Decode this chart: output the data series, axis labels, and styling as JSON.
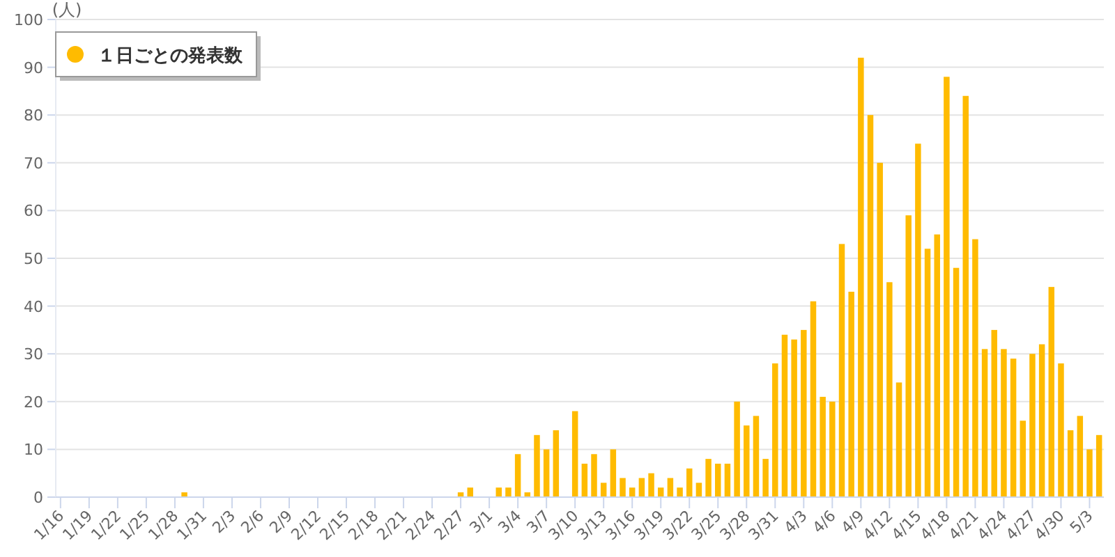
{
  "chart_data": {
    "type": "bar",
    "ylabel": "(人)",
    "legend": "top left",
    "grid": "y",
    "categories": [
      "1/16",
      null,
      null,
      "1/19",
      null,
      null,
      "1/22",
      null,
      null,
      "1/25",
      null,
      null,
      "1/28",
      null,
      null,
      "1/31",
      null,
      null,
      "2/3",
      null,
      null,
      "2/6",
      null,
      null,
      "2/9",
      null,
      null,
      "2/12",
      null,
      null,
      "2/15",
      null,
      null,
      "2/18",
      null,
      null,
      "2/21",
      null,
      null,
      "2/24",
      null,
      null,
      "2/27",
      null,
      null,
      "3/1",
      null,
      null,
      "3/4",
      null,
      null,
      "3/7",
      null,
      null,
      "3/10",
      null,
      null,
      "3/13",
      null,
      null,
      "3/16",
      null,
      null,
      "3/19",
      null,
      null,
      "3/22",
      null,
      null,
      "3/25",
      null,
      null,
      "3/28",
      null,
      null,
      "3/31",
      null,
      null,
      "4/3",
      null,
      null,
      "4/6",
      null,
      null,
      "4/9",
      null,
      null,
      "4/12",
      null,
      null,
      "4/15",
      null,
      null,
      "4/18",
      null,
      null,
      "4/21",
      null,
      null,
      "4/24",
      null,
      null,
      "4/27",
      null,
      null,
      "4/30",
      null,
      null,
      "5/3",
      null
    ],
    "ylim": [
      0,
      100
    ],
    "yticks": [
      0,
      10,
      20,
      30,
      40,
      50,
      60,
      70,
      80,
      90,
      100
    ],
    "series": [
      {
        "name": "１日ごとの発表数",
        "color": "#ffbb00",
        "values": [
          0,
          0,
          0,
          0,
          0,
          0,
          0,
          0,
          0,
          0,
          0,
          0,
          0,
          1,
          0,
          0,
          0,
          0,
          0,
          0,
          0,
          0,
          0,
          0,
          0,
          0,
          0,
          0,
          0,
          0,
          0,
          0,
          0,
          0,
          0,
          0,
          0,
          0,
          0,
          0,
          0,
          0,
          1,
          2,
          0,
          0,
          2,
          2,
          9,
          1,
          13,
          10,
          14,
          0,
          18,
          7,
          9,
          3,
          10,
          4,
          2,
          4,
          5,
          2,
          4,
          2,
          6,
          3,
          8,
          7,
          7,
          20,
          15,
          17,
          8,
          28,
          34,
          33,
          35,
          41,
          21,
          20,
          53,
          43,
          92,
          80,
          70,
          45,
          24,
          59,
          74,
          52,
          55,
          88,
          48,
          84,
          54,
          31,
          35,
          31,
          29,
          16,
          30,
          32,
          44,
          28,
          14,
          17,
          10,
          13
        ]
      }
    ]
  }
}
